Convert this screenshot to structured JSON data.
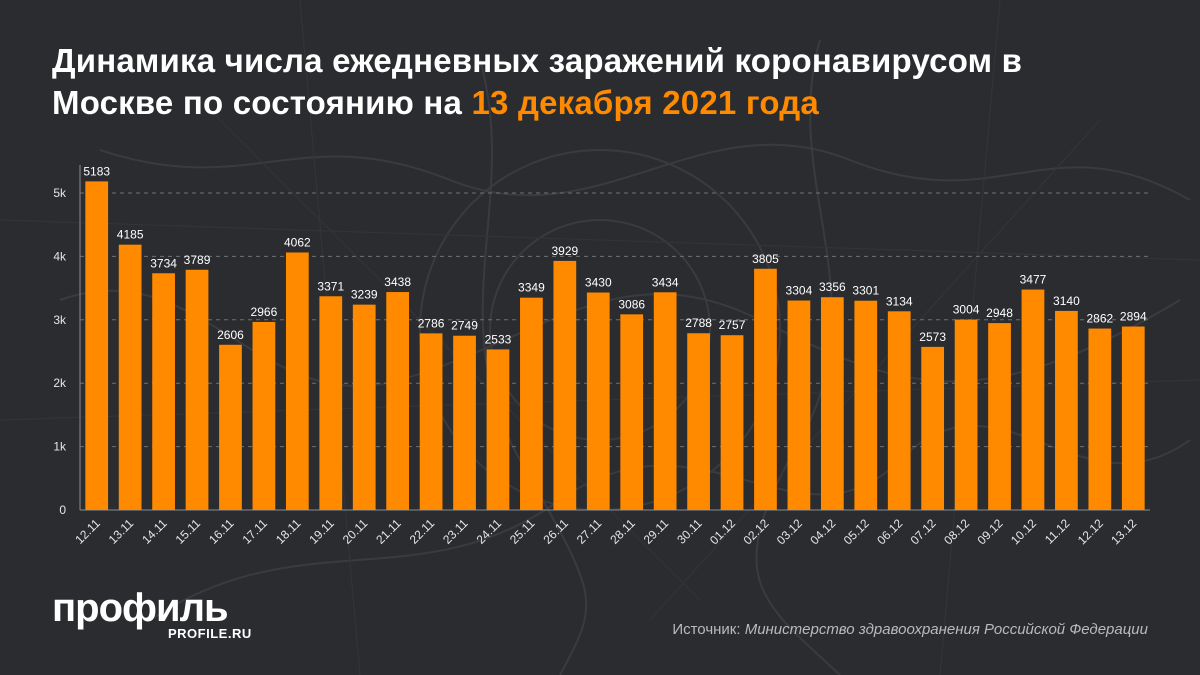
{
  "header": {
    "title_main": "Динамика числа ежедневных заражений коронавирусом в Москве по состоянию на ",
    "title_accent": "13 декабря 2021 года"
  },
  "footer": {
    "logo": "профиль",
    "logo_site": "PROFILE.RU",
    "source_label": "Источник: ",
    "source_value": "Министерство здравоохранения Российской Федерации"
  },
  "colors": {
    "bar": "#ff8a00",
    "accent": "#ff8a00",
    "background": "#2b2c2f"
  },
  "chart_data": {
    "type": "bar",
    "categories": [
      "12.11",
      "13.11",
      "14.11",
      "15.11",
      "16.11",
      "17.11",
      "18.11",
      "19.11",
      "20.11",
      "21.11",
      "22.11",
      "23.11",
      "24.11",
      "25.11",
      "26.11",
      "27.11",
      "28.11",
      "29.11",
      "30.11",
      "01.12",
      "02.12",
      "03.12",
      "04.12",
      "05.12",
      "06.12",
      "07.12",
      "08.12",
      "09.12",
      "10.12",
      "11.12",
      "12.12",
      "13.12"
    ],
    "values": [
      5183,
      4185,
      3734,
      3789,
      2606,
      2966,
      4062,
      3371,
      3239,
      3438,
      2786,
      2749,
      2533,
      3349,
      3929,
      3430,
      3086,
      3434,
      2788,
      2757,
      3805,
      3304,
      3356,
      3301,
      3134,
      2573,
      3004,
      2948,
      3477,
      3140,
      2862,
      2894
    ],
    "yticks": [
      0,
      1000,
      2000,
      3000,
      4000,
      5000
    ],
    "ytick_labels": [
      "0",
      "1k",
      "2k",
      "3k",
      "4k",
      "5k"
    ],
    "ylim": [
      0,
      5200
    ],
    "grid": true,
    "xlabel": "",
    "ylabel": ""
  }
}
